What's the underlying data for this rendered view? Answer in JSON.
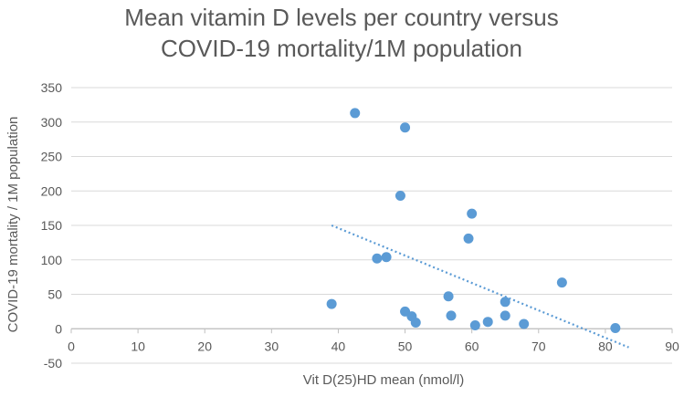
{
  "chart_data": {
    "type": "scatter",
    "title_lines": [
      "Mean vitamin D  levels per country versus",
      "COVID-19 mortality/1M population"
    ],
    "xlabel": "Vit D(25)HD mean (nmol/l)",
    "ylabel": "COVID-19 mortality / 1M population",
    "xlim": [
      0,
      90
    ],
    "ylim": [
      -50,
      350
    ],
    "x_ticks": [
      0,
      10,
      20,
      30,
      40,
      50,
      60,
      70,
      80,
      90
    ],
    "y_ticks": [
      -50,
      0,
      50,
      100,
      150,
      200,
      250,
      300,
      350
    ],
    "grid": "horizontal",
    "marker_color": "#5b9bd5",
    "trendline_color": "#5b9bd5",
    "points": [
      {
        "x": 42.5,
        "y": 313
      },
      {
        "x": 50,
        "y": 292
      },
      {
        "x": 49.3,
        "y": 193
      },
      {
        "x": 60,
        "y": 167
      },
      {
        "x": 59.5,
        "y": 131
      },
      {
        "x": 45.8,
        "y": 102
      },
      {
        "x": 47.2,
        "y": 104
      },
      {
        "x": 73.5,
        "y": 67
      },
      {
        "x": 56.5,
        "y": 47
      },
      {
        "x": 65,
        "y": 39
      },
      {
        "x": 39,
        "y": 36
      },
      {
        "x": 50,
        "y": 25
      },
      {
        "x": 51,
        "y": 18
      },
      {
        "x": 51.6,
        "y": 9
      },
      {
        "x": 56.9,
        "y": 19
      },
      {
        "x": 65,
        "y": 19
      },
      {
        "x": 62.4,
        "y": 10
      },
      {
        "x": 60.5,
        "y": 5
      },
      {
        "x": 67.8,
        "y": 7
      },
      {
        "x": 81.5,
        "y": 1
      }
    ],
    "trendline": {
      "type": "linear",
      "x_start": 39,
      "y_start": 150,
      "x_end": 83.5,
      "y_end": -27
    }
  }
}
